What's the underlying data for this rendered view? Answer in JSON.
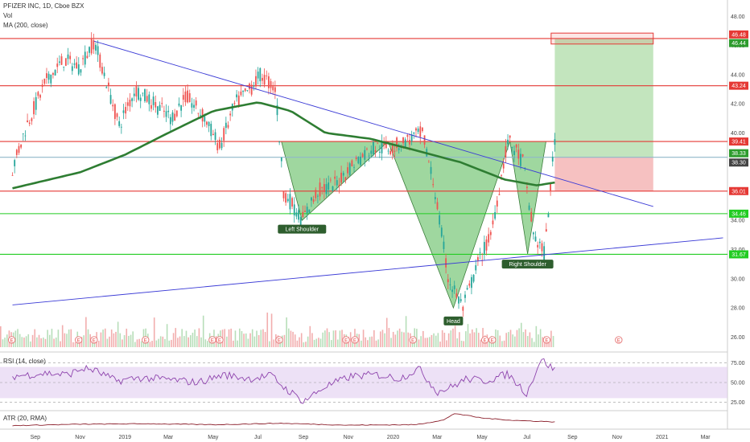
{
  "header": {
    "title": "PFIZER INC, 1D, Cboe BZX",
    "vol": "Vol",
    "ma": "MA (200, close)"
  },
  "rsi_panel": {
    "label": "RSI (14, close)"
  },
  "atr_panel": {
    "label": "ATR (20, RMA)"
  },
  "chart_data": [
    {
      "type": "line",
      "panel": "price",
      "x_axis": {
        "tick_labels": [
          "Sep",
          "Nov",
          "2019",
          "Mar",
          "May",
          "Jul",
          "Sep",
          "Nov",
          "2020",
          "Mar",
          "May",
          "Jul",
          "Sep",
          "Nov",
          "2021",
          "Mar"
        ]
      },
      "y_axis": {
        "tick_values": [
          48.0,
          46.0,
          44.0,
          42.0,
          40.0,
          38.0,
          36.0,
          34.0,
          32.0,
          30.0,
          28.0,
          26.0
        ],
        "tick_labels": [
          "48.00",
          "46.00",
          "44.00",
          "42.00",
          "40.00",
          "38.00",
          "36.00",
          "34.00",
          "32.00",
          "30.00",
          "28.00",
          "26.00"
        ],
        "range": [
          25.3,
          48.9
        ]
      },
      "price_series": {
        "x": [
          "2018-08-01",
          "2018-08-20",
          "2018-09-15",
          "2018-10-10",
          "2018-10-31",
          "2018-11-20",
          "2018-12-04",
          "2018-12-24",
          "2019-01-15",
          "2019-02-10",
          "2019-03-05",
          "2019-03-25",
          "2019-04-20",
          "2019-05-10",
          "2019-05-31",
          "2019-06-20",
          "2019-07-05",
          "2019-07-25",
          "2019-08-05",
          "2019-08-30",
          "2019-09-20",
          "2019-10-15",
          "2019-11-10",
          "2019-12-05",
          "2019-12-31",
          "2020-01-20",
          "2020-02-10",
          "2020-02-27",
          "2020-03-16",
          "2020-04-05",
          "2020-04-25",
          "2020-05-13",
          "2020-06-05",
          "2020-06-26",
          "2020-07-10",
          "2020-07-25",
          "2020-08-08"
        ],
        "values": [
          37.5,
          40.5,
          43.5,
          45.0,
          44.5,
          46.3,
          44.0,
          40.5,
          43.0,
          42.0,
          41.0,
          42.5,
          41.0,
          39.0,
          42.0,
          43.0,
          44.0,
          43.0,
          36.0,
          34.0,
          36.0,
          36.5,
          38.0,
          39.0,
          39.0,
          39.5,
          40.0,
          36.0,
          30.0,
          28.0,
          31.0,
          33.0,
          39.5,
          38.0,
          33.0,
          31.7,
          39.5
        ]
      },
      "ma200": {
        "name": "MA (200, close)",
        "x": [
          "2018-08-01",
          "2018-11-01",
          "2019-01-01",
          "2019-03-01",
          "2019-05-01",
          "2019-07-01",
          "2019-08-15",
          "2019-10-01",
          "2019-12-01",
          "2020-02-01",
          "2020-04-01",
          "2020-06-01",
          "2020-07-15",
          "2020-08-08"
        ],
        "values": [
          36.2,
          37.3,
          38.5,
          40.0,
          41.5,
          42.1,
          41.5,
          40.0,
          39.6,
          38.8,
          38.0,
          36.8,
          36.4,
          36.6
        ]
      },
      "horizontal_levels": [
        {
          "value": 46.48,
          "label": "46.48",
          "color": "#e53935"
        },
        {
          "value": 46.44,
          "label": "46.44",
          "color": "#2e9c2e"
        },
        {
          "value": 43.24,
          "label": "43.24",
          "color": "#e53935"
        },
        {
          "value": 39.41,
          "label": "39.41",
          "color": "#e53935"
        },
        {
          "value": 38.33,
          "label": "38.33",
          "color": "#2e9c2e"
        },
        {
          "value": 38.3,
          "label": "38.30",
          "color": "#444444"
        },
        {
          "value": 36.01,
          "label": "36.01",
          "color": "#e53935"
        },
        {
          "value": 34.46,
          "label": "34.46",
          "color": "#22cc22"
        },
        {
          "value": 31.67,
          "label": "31.67",
          "color": "#22cc22"
        }
      ],
      "trendlines": [
        {
          "x": [
            "2018-11-20",
            "2020-12-20"
          ],
          "values": [
            46.3,
            34.95
          ],
          "color": "#3b3bd6"
        },
        {
          "x": [
            "2018-08-01",
            "2021-03-25"
          ],
          "values": [
            28.2,
            32.8
          ],
          "color": "#3b3bd6"
        }
      ],
      "pattern": {
        "fill": "#7fc97f",
        "triangles": [
          {
            "x": [
              "2019-08-02",
              "2019-08-30",
              "2019-12-25"
            ],
            "values": [
              39.41,
              34.0,
              39.41
            ]
          },
          {
            "x": [
              "2019-12-25",
              "2020-03-23",
              "2020-06-08"
            ],
            "values": [
              39.41,
              28.0,
              39.41
            ]
          },
          {
            "x": [
              "2020-06-08",
              "2020-07-02",
              "2020-07-27"
            ],
            "values": [
              39.41,
              31.7,
              39.41
            ]
          }
        ]
      },
      "annotations": [
        {
          "text": "Left Shoulder",
          "x": "2019-08-30",
          "value": 33.7
        },
        {
          "text": "Head",
          "x": "2020-03-23",
          "value": 27.4
        },
        {
          "text": "Right Shoulder",
          "x": "2020-07-02",
          "value": 31.3
        }
      ],
      "position_tool": {
        "x": [
          "2020-08-08",
          "2020-12-20"
        ],
        "entry": 38.33,
        "target": 46.44,
        "stop": 36.01,
        "profit_color": "#b8e0b3",
        "loss_color": "#f4b6b6"
      },
      "target_box": {
        "x": [
          "2020-08-03",
          "2020-12-20"
        ],
        "values": [
          46.85,
          46.1
        ],
        "color": "#e53935"
      },
      "earnings_markers": {
        "symbol": "E",
        "x": [
          "2018-07-31",
          "2018-10-30",
          "2018-11-20",
          "2019-01-29",
          "2019-04-30",
          "2019-05-10",
          "2019-07-30",
          "2019-10-29",
          "2019-11-10",
          "2020-01-28",
          "2020-05-05",
          "2020-05-15",
          "2020-07-28",
          "2020-11-03"
        ]
      },
      "volume_color_up": "#a5d6a7",
      "volume_color_down": "#ef9a9a"
    },
    {
      "type": "line",
      "panel": "rsi",
      "title": "RSI (14, close)",
      "y_axis": {
        "tick_values": [
          75,
          50,
          25
        ],
        "tick_labels": [
          "75.00",
          "50.00",
          "25.00"
        ],
        "range": [
          15,
          85
        ]
      },
      "band": [
        30,
        70
      ],
      "band_color": "#e1cdf0",
      "series_color": "#8e44ad",
      "x": [
        "2018-08-01",
        "2018-09-15",
        "2018-10-15",
        "2018-11-05",
        "2018-11-20",
        "2018-12-20",
        "2019-01-20",
        "2019-03-01",
        "2019-04-10",
        "2019-05-15",
        "2019-06-20",
        "2019-07-20",
        "2019-08-05",
        "2019-09-01",
        "2019-10-01",
        "2019-11-05",
        "2019-12-10",
        "2020-01-10",
        "2020-02-05",
        "2020-03-01",
        "2020-03-20",
        "2020-04-10",
        "2020-05-05",
        "2020-06-05",
        "2020-07-01",
        "2020-07-20",
        "2020-08-08"
      ],
      "values": [
        58,
        62,
        60,
        68,
        66,
        52,
        56,
        54,
        50,
        60,
        55,
        59,
        44,
        26,
        45,
        58,
        60,
        55,
        68,
        38,
        44,
        55,
        52,
        61,
        36,
        80,
        66
      ]
    },
    {
      "type": "line",
      "panel": "atr",
      "title": "ATR (20, RMA)",
      "series_color": "#8b1f2b",
      "x": [
        "2018-08-01",
        "2018-11-01",
        "2019-02-01",
        "2019-05-01",
        "2019-08-01",
        "2019-11-01",
        "2020-02-01",
        "2020-03-10",
        "2020-03-25",
        "2020-05-01",
        "2020-06-15",
        "2020-08-08"
      ],
      "values": [
        0.5,
        0.65,
        0.7,
        0.6,
        0.75,
        0.55,
        0.6,
        1.1,
        1.8,
        1.3,
        1.05,
        0.9
      ]
    }
  ]
}
